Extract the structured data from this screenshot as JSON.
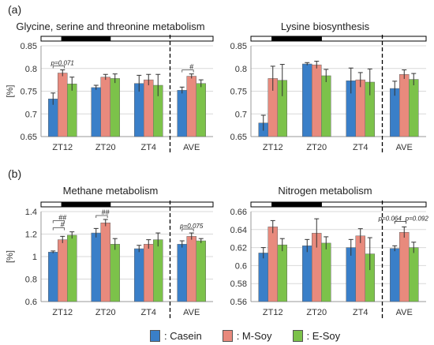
{
  "panel_labels": [
    "(a)",
    "(b)"
  ],
  "colors": {
    "casein": "#3a7fc8",
    "msoy": "#e88a7d",
    "esoy": "#7cc24a"
  },
  "legend": [
    {
      "label": ": Casein",
      "color": "#3a7fc8"
    },
    {
      "label": ": M-Soy",
      "color": "#e88a7d"
    },
    {
      "label": ": E-Soy",
      "color": "#7cc24a"
    }
  ],
  "chart_data": [
    {
      "type": "bar",
      "title": "Glycine, serine and threonine metabolism",
      "ylabel": "[%]",
      "ylim": [
        0.65,
        0.85
      ],
      "yticks": [
        "0.65",
        "0.7",
        "0.75",
        "0.8",
        "0.85"
      ],
      "categories": [
        "ZT12",
        "ZT20",
        "ZT4",
        "AVE"
      ],
      "series": [
        {
          "values": [
            0.733,
            0.758,
            0.767,
            0.752
          ],
          "errors": [
            0.013,
            0.005,
            0.018,
            0.007
          ]
        },
        {
          "values": [
            0.79,
            0.781,
            0.775,
            0.783
          ],
          "errors": [
            0.007,
            0.006,
            0.012,
            0.005
          ]
        },
        {
          "values": [
            0.766,
            0.778,
            0.763,
            0.767
          ],
          "errors": [
            0.015,
            0.01,
            0.024,
            0.008
          ]
        }
      ],
      "annotations": [
        {
          "text": "p=0.071",
          "category": "ZT12"
        },
        {
          "text": "#",
          "category": "AVE"
        }
      ],
      "light_dark_bar": true
    },
    {
      "type": "bar",
      "title": "Lysine biosynthesis",
      "ylabel": "",
      "ylim": [
        0.65,
        0.85
      ],
      "yticks": [
        "0.65",
        "0.7",
        "0.75",
        "0.8",
        "0.85"
      ],
      "categories": [
        "ZT12",
        "ZT20",
        "ZT4",
        "AVE"
      ],
      "series": [
        {
          "values": [
            0.68,
            0.81,
            0.773,
            0.756
          ],
          "errors": [
            0.017,
            0.003,
            0.028,
            0.016
          ]
        },
        {
          "values": [
            0.778,
            0.808,
            0.775,
            0.787
          ],
          "errors": [
            0.027,
            0.008,
            0.016,
            0.01
          ]
        },
        {
          "values": [
            0.774,
            0.784,
            0.77,
            0.776
          ],
          "errors": [
            0.035,
            0.014,
            0.029,
            0.013
          ]
        }
      ],
      "annotations": [],
      "light_dark_bar": true
    },
    {
      "type": "bar",
      "title": "Methane metabolism",
      "ylabel": "[%]",
      "ylim": [
        0.6,
        1.4
      ],
      "yticks": [
        "0.6",
        "0.8",
        "1",
        "1.2",
        "1.4"
      ],
      "categories": [
        "ZT12",
        "ZT20",
        "ZT4",
        "AVE"
      ],
      "series": [
        {
          "values": [
            1.04,
            1.21,
            1.07,
            1.11
          ],
          "errors": [
            0.01,
            0.04,
            0.03,
            0.03
          ]
        },
        {
          "values": [
            1.15,
            1.3,
            1.11,
            1.18
          ],
          "errors": [
            0.03,
            0.03,
            0.04,
            0.03
          ]
        },
        {
          "values": [
            1.19,
            1.11,
            1.15,
            1.14
          ],
          "errors": [
            0.03,
            0.05,
            0.06,
            0.02
          ]
        }
      ],
      "annotations": [
        {
          "text": "#",
          "category": "ZT12"
        },
        {
          "text": "##",
          "category": "ZT12"
        },
        {
          "text": "##",
          "category": "ZT20"
        },
        {
          "text": "p=0.075",
          "category": "AVE"
        }
      ],
      "light_dark_bar": true
    },
    {
      "type": "bar",
      "title": "Nitrogen metabolism",
      "ylabel": "",
      "ylim": [
        0.56,
        0.66
      ],
      "yticks": [
        "0.56",
        "0.58",
        "0.6",
        "0.62",
        "0.64",
        "0.66"
      ],
      "categories": [
        "ZT12",
        "ZT20",
        "ZT4",
        "AVE"
      ],
      "series": [
        {
          "values": [
            0.614,
            0.622,
            0.62,
            0.619
          ],
          "errors": [
            0.006,
            0.007,
            0.009,
            0.003
          ]
        },
        {
          "values": [
            0.643,
            0.636,
            0.633,
            0.637
          ],
          "errors": [
            0.007,
            0.016,
            0.008,
            0.006
          ]
        },
        {
          "values": [
            0.623,
            0.625,
            0.613,
            0.62
          ],
          "errors": [
            0.007,
            0.007,
            0.018,
            0.006
          ]
        }
      ],
      "annotations": [
        {
          "text": "p=0.064",
          "category": "AVE"
        },
        {
          "text": "p=0.092",
          "category": "AVE"
        }
      ],
      "light_dark_bar": true
    }
  ]
}
